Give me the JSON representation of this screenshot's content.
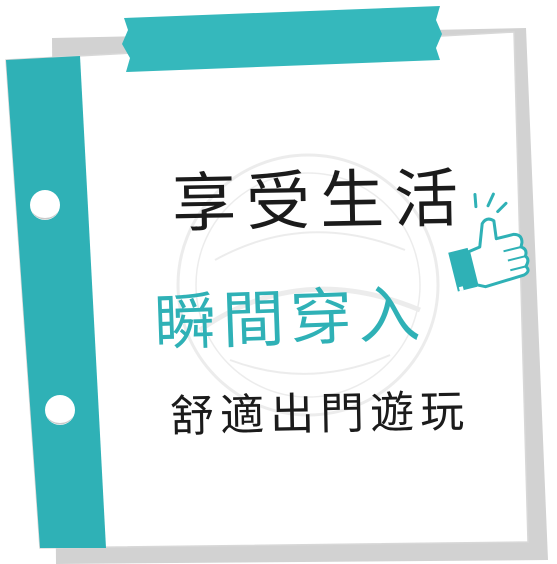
{
  "colors": {
    "teal": "#2fb1b6",
    "ink": "#1b1b1b",
    "paper": "#ffffff",
    "shadow": "#d2d2d2"
  },
  "note": {
    "line_1": "享受生活",
    "line_2": "瞬間穿入",
    "line_3": "舒適出門遊玩"
  },
  "icons": {
    "thumbs_up": "thumbs-up-icon",
    "watermark": "watermark-logo",
    "tape": "washi-tape",
    "holes": "binder-hole"
  }
}
